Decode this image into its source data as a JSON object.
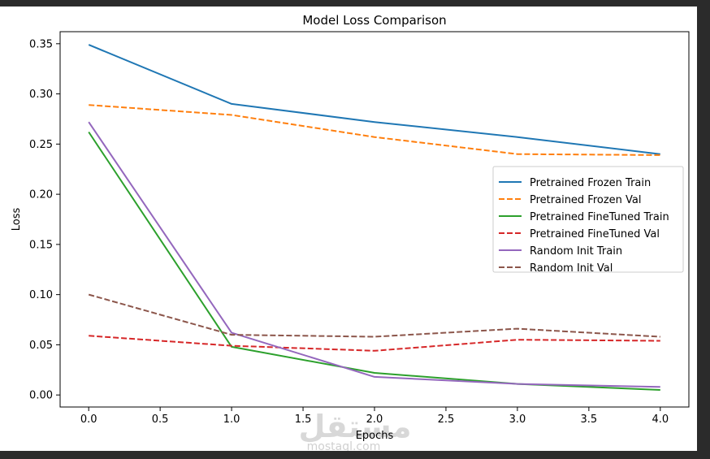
{
  "chart_data": {
    "type": "line",
    "title": "Model Loss Comparison",
    "xlabel": "Epochs",
    "ylabel": "Loss",
    "xlim": [
      -0.2,
      4.2
    ],
    "ylim": [
      -0.012,
      0.362
    ],
    "xticks": [
      0.0,
      0.5,
      1.0,
      1.5,
      2.0,
      2.5,
      3.0,
      3.5,
      4.0
    ],
    "xtick_labels": [
      "0.0",
      "0.5",
      "1.0",
      "1.5",
      "2.0",
      "2.5",
      "3.0",
      "3.5",
      "4.0"
    ],
    "yticks": [
      0.0,
      0.05,
      0.1,
      0.15,
      0.2,
      0.25,
      0.3,
      0.35
    ],
    "ytick_labels": [
      "0.00",
      "0.05",
      "0.10",
      "0.15",
      "0.20",
      "0.25",
      "0.30",
      "0.35"
    ],
    "grid": false,
    "legend_position": "center-right",
    "x": [
      0,
      1,
      2,
      3,
      4
    ],
    "series": [
      {
        "name": "Pretrained Frozen Train",
        "color": "#1f77b4",
        "dashed": false,
        "values": [
          0.349,
          0.29,
          0.272,
          0.257,
          0.24
        ]
      },
      {
        "name": "Pretrained Frozen Val",
        "color": "#ff7f0e",
        "dashed": true,
        "values": [
          0.289,
          0.279,
          0.257,
          0.24,
          0.239
        ]
      },
      {
        "name": "Pretrained FineTuned Train",
        "color": "#2ca02c",
        "dashed": false,
        "values": [
          0.262,
          0.048,
          0.022,
          0.011,
          0.005
        ]
      },
      {
        "name": "Pretrained FineTuned Val",
        "color": "#d62728",
        "dashed": true,
        "values": [
          0.059,
          0.049,
          0.044,
          0.055,
          0.054
        ]
      },
      {
        "name": "Random Init Train",
        "color": "#9467bd",
        "dashed": false,
        "values": [
          0.272,
          0.062,
          0.018,
          0.011,
          0.008
        ]
      },
      {
        "name": "Random Init Val",
        "color": "#8c564b",
        "dashed": true,
        "values": [
          0.1,
          0.06,
          0.058,
          0.066,
          0.058
        ]
      }
    ]
  },
  "watermark": {
    "logo": "مستقل",
    "sub": "mostaql.com"
  }
}
